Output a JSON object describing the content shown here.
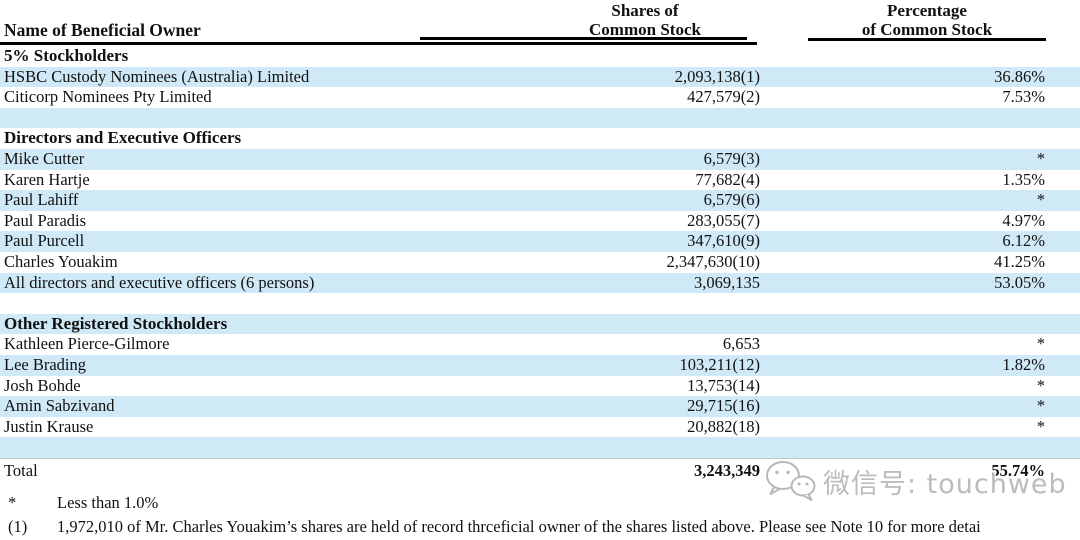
{
  "table": {
    "header": {
      "name_col": "Name of Beneficial Owner",
      "shares_line1": "Shares of",
      "shares_line2": "Common Stock",
      "pct_line1": "Percentage",
      "pct_line2": "of Common Stock"
    },
    "rows": [
      {
        "type": "section",
        "name": "5% Stockholders",
        "shares": "",
        "pct": "",
        "bg": "white"
      },
      {
        "type": "data",
        "name": "HSBC Custody Nominees (Australia) Limited",
        "shares": "2,093,138(1)",
        "pct": "36.86%",
        "bg": "blue"
      },
      {
        "type": "data",
        "name": "Citicorp Nominees Pty Limited",
        "shares": "427,579(2)",
        "pct": "7.53%",
        "bg": "white"
      },
      {
        "type": "spacer",
        "name": "",
        "shares": "",
        "pct": "",
        "bg": "blue"
      },
      {
        "type": "section",
        "name": "Directors and Executive Officers",
        "shares": "",
        "pct": "",
        "bg": "white"
      },
      {
        "type": "data",
        "name": "Mike Cutter",
        "shares": "6,579(3)",
        "pct": "*",
        "bg": "blue"
      },
      {
        "type": "data",
        "name": "Karen Hartje",
        "shares": "77,682(4)",
        "pct": "1.35%",
        "bg": "white"
      },
      {
        "type": "data",
        "name": "Paul Lahiff",
        "shares": "6,579(6)",
        "pct": "*",
        "bg": "blue"
      },
      {
        "type": "data",
        "name": "Paul Paradis",
        "shares": "283,055(7)",
        "pct": "4.97%",
        "bg": "white"
      },
      {
        "type": "data",
        "name": "Paul Purcell",
        "shares": "347,610(9)",
        "pct": "6.12%",
        "bg": "blue"
      },
      {
        "type": "data",
        "name": "Charles Youakim",
        "shares": "2,347,630(10)",
        "pct": "41.25%",
        "bg": "white"
      },
      {
        "type": "data",
        "name": "All directors and executive officers (6 persons)",
        "shares": "3,069,135",
        "pct": "53.05%",
        "bg": "blue"
      },
      {
        "type": "spacer",
        "name": "",
        "shares": "",
        "pct": "",
        "bg": "white"
      },
      {
        "type": "section",
        "name": "Other Registered Stockholders",
        "shares": "",
        "pct": "",
        "bg": "blue"
      },
      {
        "type": "data",
        "name": "Kathleen Pierce-Gilmore",
        "shares": "6,653",
        "pct": "*",
        "bg": "white"
      },
      {
        "type": "data",
        "name": "Lee Brading",
        "shares": "103,211(12)",
        "pct": "1.82%",
        "bg": "blue"
      },
      {
        "type": "data",
        "name": "Josh Bohde",
        "shares": "13,753(14)",
        "pct": "*",
        "bg": "white"
      },
      {
        "type": "data",
        "name": "Amin Sabzivand",
        "shares": "29,715(16)",
        "pct": "*",
        "bg": "blue"
      },
      {
        "type": "data",
        "name": "Justin Krause",
        "shares": "20,882(18)",
        "pct": "*",
        "bg": "white"
      },
      {
        "type": "spacer",
        "name": "",
        "shares": "",
        "pct": "",
        "bg": "blue"
      }
    ],
    "total": {
      "label": "Total",
      "shares": "3,243,349",
      "pct": "55.74%"
    }
  },
  "footnotes": [
    {
      "marker": "*",
      "text": "Less than 1.0%"
    },
    {
      "marker": "(1)",
      "text": "1,972,010 of Mr. Charles Youakim’s shares are held of record thrceficial owner of the shares listed above. Please see Note 10 for more detai"
    }
  ],
  "watermark": {
    "icon": "wechat-icon",
    "text": "微信号: touchweb"
  },
  "colors": {
    "stripe_blue": "#cfe9f7",
    "rule_black": "#000000",
    "text": "#111111",
    "watermark_gray": "#bcbcbc"
  }
}
